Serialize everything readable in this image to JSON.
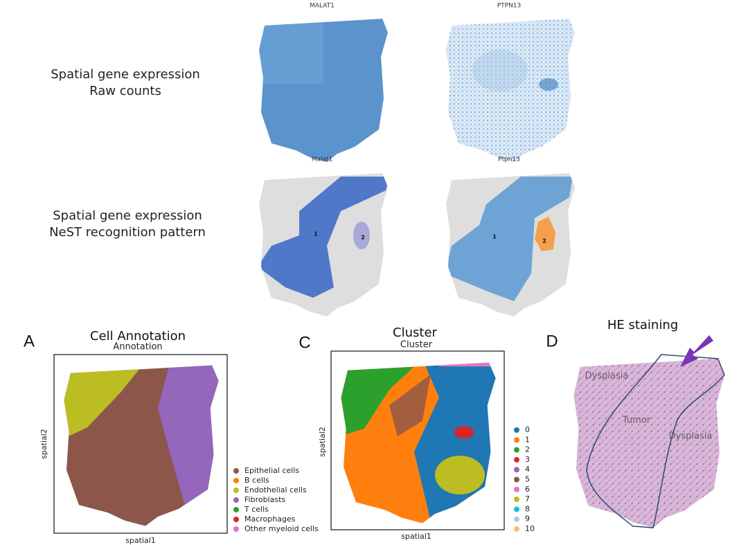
{
  "top_panels": {
    "row1_label": [
      "Spatial gene expression",
      "Raw counts"
    ],
    "row2_label": [
      "Spatial gene expression",
      "NeST recognition pattern"
    ],
    "plots": [
      {
        "title": "MALAT1"
      },
      {
        "title": "PTPN13"
      },
      {
        "title": "Malat1",
        "regions": [
          "1",
          "2"
        ]
      },
      {
        "title": "Ptpn13",
        "regions": [
          "1",
          "2"
        ]
      }
    ]
  },
  "panel_a": {
    "letter": "A",
    "title": "Cell Annotation",
    "subtitle": "Annotation",
    "xlabel": "spatial1",
    "ylabel": "spatial2",
    "legend": [
      {
        "label": "Epithelial cells",
        "color": "#8c564b"
      },
      {
        "label": "B cells",
        "color": "#ff7f0e"
      },
      {
        "label": "Endothelial cells",
        "color": "#bcbd22"
      },
      {
        "label": "Fibroblasts",
        "color": "#9467bd"
      },
      {
        "label": "T cells",
        "color": "#2ca02c"
      },
      {
        "label": "Macrophages",
        "color": "#d62728"
      },
      {
        "label": "Other myeloid cells",
        "color": "#e377c2"
      }
    ]
  },
  "panel_c": {
    "letter": "C",
    "title": "Cluster",
    "subtitle": "Cluster",
    "xlabel": "spatial1",
    "ylabel": "spatial2",
    "legend": [
      {
        "label": "0",
        "color": "#1f77b4"
      },
      {
        "label": "1",
        "color": "#ff7f0e"
      },
      {
        "label": "2",
        "color": "#2ca02c"
      },
      {
        "label": "3",
        "color": "#d62728"
      },
      {
        "label": "4",
        "color": "#9467bd"
      },
      {
        "label": "5",
        "color": "#8c564b"
      },
      {
        "label": "6",
        "color": "#e377c2"
      },
      {
        "label": "7",
        "color": "#bcbd22"
      },
      {
        "label": "8",
        "color": "#17becf"
      },
      {
        "label": "9",
        "color": "#aec7e8"
      },
      {
        "label": "10",
        "color": "#ffbb78"
      }
    ]
  },
  "panel_d": {
    "letter": "D",
    "title": "HE staining",
    "labels": [
      "Dysplasia",
      "Tumor",
      "Dysplasia"
    ]
  }
}
